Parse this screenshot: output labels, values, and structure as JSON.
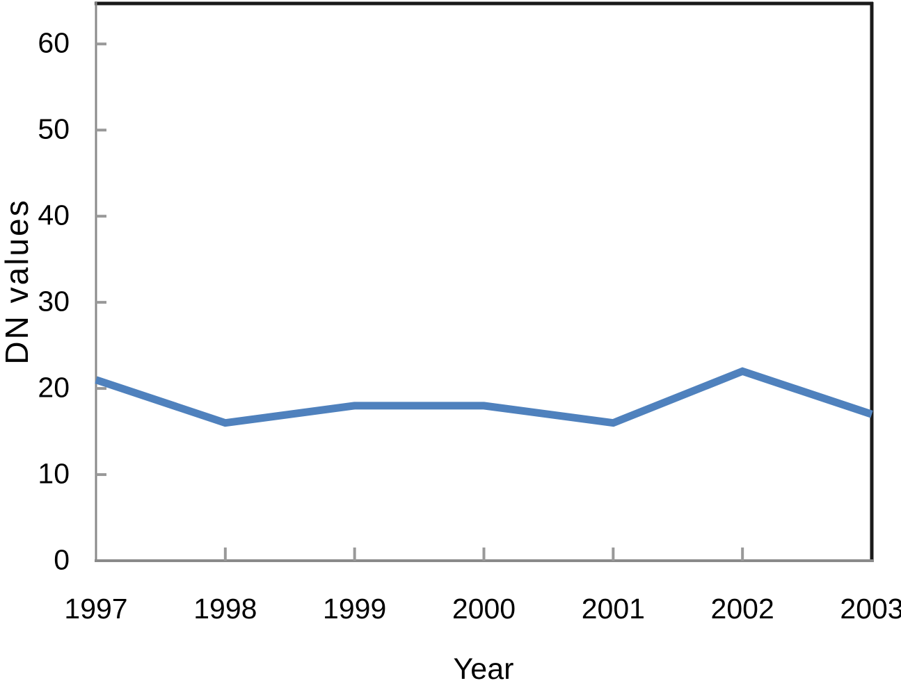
{
  "chart_data": {
    "type": "line",
    "title": "",
    "xlabel": "Year",
    "ylabel": "DN values",
    "x": [
      "1997",
      "1998",
      "1999",
      "2000",
      "2001",
      "2002",
      "2003"
    ],
    "series": [
      {
        "name": "DN values",
        "values": [
          21,
          16,
          18,
          18,
          16,
          22,
          17
        ]
      }
    ],
    "yticks": [
      0,
      10,
      20,
      30,
      40,
      50,
      60
    ],
    "ylim": [
      0,
      64.7
    ],
    "grid": false,
    "legend_position": "none",
    "colors": {
      "line": "#4f81bd",
      "axis": "#8a8a8a",
      "tick": "#999999",
      "frame": "#1a1a1a",
      "text": "#000000",
      "background": "#ffffff"
    }
  }
}
